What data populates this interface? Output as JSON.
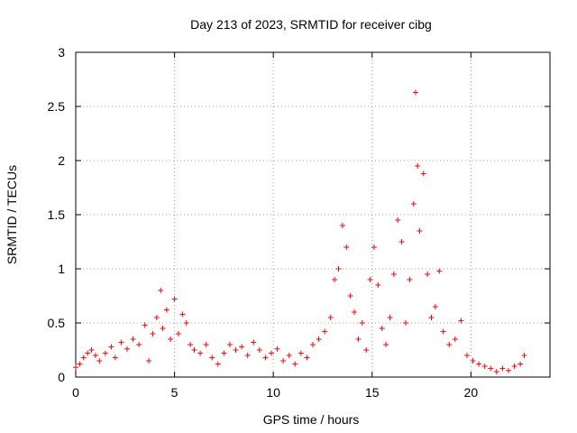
{
  "chart_data": {
    "type": "scatter",
    "title": "Day 213 of 2023, SRMTID for receiver cibg",
    "xlabel": "GPS time / hours",
    "ylabel": "SRMTID / TECUs",
    "xlim": [
      0,
      24
    ],
    "ylim": [
      0,
      3
    ],
    "xticks": [
      0,
      5,
      10,
      15,
      20
    ],
    "xtick_labels": [
      "0",
      "5",
      "10",
      "15",
      "20"
    ],
    "yticks": [
      0,
      0.5,
      1,
      1.5,
      2,
      2.5,
      3
    ],
    "ytick_labels": [
      "0",
      "0.5",
      "1",
      "1.5",
      "2",
      "2.5",
      "3"
    ],
    "grid": true,
    "marker": "plus",
    "color": "#ff0000",
    "series": [
      {
        "name": "SRMTID",
        "x": [
          0.0,
          0.2,
          0.4,
          0.6,
          0.8,
          1.0,
          1.2,
          1.5,
          1.8,
          2.0,
          2.3,
          2.6,
          2.9,
          3.2,
          3.5,
          3.7,
          3.9,
          4.1,
          4.3,
          4.4,
          4.6,
          4.8,
          5.0,
          5.2,
          5.4,
          5.6,
          5.8,
          6.0,
          6.3,
          6.6,
          6.9,
          7.2,
          7.5,
          7.8,
          8.1,
          8.4,
          8.7,
          9.0,
          9.3,
          9.6,
          9.9,
          10.2,
          10.5,
          10.8,
          11.1,
          11.4,
          11.7,
          12.0,
          12.3,
          12.6,
          12.9,
          13.1,
          13.3,
          13.5,
          13.7,
          13.9,
          14.1,
          14.3,
          14.5,
          14.7,
          14.9,
          15.1,
          15.3,
          15.5,
          15.7,
          15.9,
          16.1,
          16.3,
          16.5,
          16.7,
          16.9,
          17.1,
          17.2,
          17.3,
          17.4,
          17.6,
          17.8,
          18.0,
          18.2,
          18.4,
          18.6,
          18.9,
          19.2,
          19.5,
          19.8,
          20.1,
          20.4,
          20.7,
          21.0,
          21.3,
          21.6,
          21.9,
          22.2,
          22.5,
          22.7
        ],
        "y": [
          0.09,
          0.12,
          0.18,
          0.22,
          0.25,
          0.2,
          0.15,
          0.22,
          0.28,
          0.18,
          0.32,
          0.26,
          0.35,
          0.3,
          0.48,
          0.15,
          0.4,
          0.55,
          0.8,
          0.45,
          0.62,
          0.35,
          0.72,
          0.4,
          0.58,
          0.5,
          0.3,
          0.25,
          0.22,
          0.3,
          0.18,
          0.12,
          0.22,
          0.3,
          0.25,
          0.28,
          0.2,
          0.32,
          0.25,
          0.18,
          0.22,
          0.26,
          0.15,
          0.2,
          0.12,
          0.22,
          0.18,
          0.3,
          0.35,
          0.42,
          0.55,
          0.9,
          1.0,
          1.4,
          1.2,
          0.75,
          0.6,
          0.35,
          0.5,
          0.25,
          0.9,
          1.2,
          0.85,
          0.45,
          0.3,
          0.55,
          0.95,
          1.45,
          1.25,
          0.5,
          0.9,
          1.6,
          2.63,
          1.95,
          1.35,
          1.88,
          0.95,
          0.55,
          0.65,
          0.98,
          0.42,
          0.3,
          0.35,
          0.52,
          0.2,
          0.15,
          0.12,
          0.1,
          0.08,
          0.05,
          0.08,
          0.06,
          0.1,
          0.12,
          0.2
        ]
      }
    ]
  }
}
